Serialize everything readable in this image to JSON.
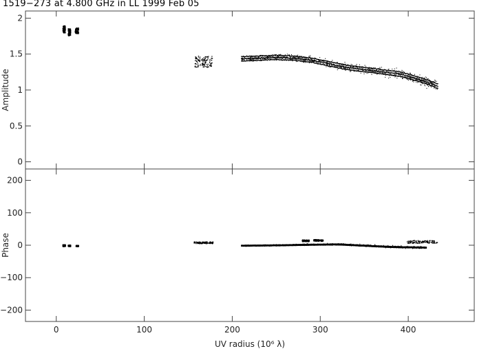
{
  "title": "1519−273 at 4.800 GHz in LL  1999 Feb 05",
  "chart_data": [
    {
      "type": "scatter",
      "name": "amplitude-panel",
      "ylabel": "Amplitude",
      "xlim": [
        -35,
        475
      ],
      "ylim": [
        -0.1,
        2.1
      ],
      "xticks": [
        0,
        100,
        200,
        300,
        400
      ],
      "yticks": [
        0,
        0.5,
        1,
        1.5,
        2
      ],
      "ytick_labels": [
        "0",
        "0.5",
        "1",
        "1.5",
        "2"
      ],
      "trend": [
        [
          210,
          1.44
        ],
        [
          230,
          1.45
        ],
        [
          250,
          1.46
        ],
        [
          270,
          1.45
        ],
        [
          290,
          1.42
        ],
        [
          310,
          1.37
        ],
        [
          330,
          1.32
        ],
        [
          350,
          1.29
        ],
        [
          370,
          1.26
        ],
        [
          390,
          1.23
        ],
        [
          410,
          1.16
        ],
        [
          425,
          1.1
        ],
        [
          433,
          1.06
        ]
      ],
      "clusters": [
        {
          "x": [
            7,
            10
          ],
          "y": [
            1.8,
            1.9
          ]
        },
        {
          "x": [
            13,
            16
          ],
          "y": [
            1.76,
            1.86
          ]
        },
        {
          "x": [
            21,
            25
          ],
          "y": [
            1.79,
            1.87
          ]
        },
        {
          "x": [
            157,
            177
          ],
          "y": [
            1.32,
            1.48
          ]
        }
      ]
    },
    {
      "type": "scatter",
      "name": "phase-panel",
      "ylabel": "Phase",
      "xlabel": "UV radius  (10⁶ λ)",
      "xlim": [
        -35,
        475
      ],
      "ylim": [
        -235,
        235
      ],
      "xticks": [
        0,
        100,
        200,
        300,
        400
      ],
      "xtick_labels": [
        "0",
        "100",
        "200",
        "300",
        "400"
      ],
      "yticks": [
        -200,
        -100,
        0,
        100,
        200
      ],
      "ytick_labels": [
        "−200",
        "−100",
        "0",
        "100",
        "200"
      ],
      "trend": [
        [
          210,
          0
        ],
        [
          250,
          1
        ],
        [
          290,
          3
        ],
        [
          320,
          4
        ],
        [
          350,
          0
        ],
        [
          380,
          -4
        ],
        [
          420,
          -6
        ]
      ],
      "clusters": [
        {
          "x": [
            7,
            10
          ],
          "y": [
            -3,
            3
          ]
        },
        {
          "x": [
            13,
            16
          ],
          "y": [
            -3,
            2
          ]
        },
        {
          "x": [
            22,
            25
          ],
          "y": [
            -3,
            1
          ]
        },
        {
          "x": [
            156,
            178
          ],
          "y": [
            6,
            12
          ]
        },
        {
          "x": [
            279,
            287
          ],
          "y": [
            12,
            18
          ]
        },
        {
          "x": [
            292,
            303
          ],
          "y": [
            13,
            19
          ]
        },
        {
          "x": [
            398,
            433
          ],
          "y": [
            7,
            16
          ]
        }
      ]
    }
  ]
}
